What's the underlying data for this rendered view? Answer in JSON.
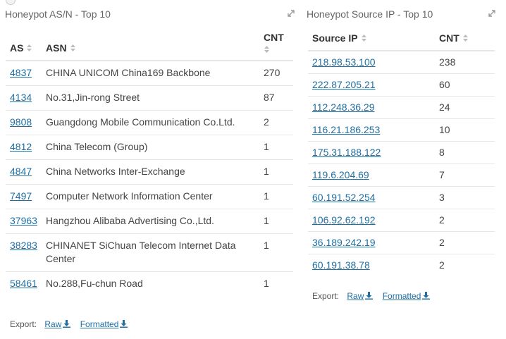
{
  "asn_panel": {
    "title": "Honeypot AS/N - Top 10",
    "headers": {
      "as": "AS",
      "asn": "ASN",
      "cnt": "CNT"
    },
    "rows": [
      {
        "as": "4837",
        "asn": "CHINA UNICOM China169 Backbone",
        "cnt": "270"
      },
      {
        "as": "4134",
        "asn": "No.31,Jin-rong Street",
        "cnt": "87"
      },
      {
        "as": "9808",
        "asn": "Guangdong Mobile Communication Co.Ltd.",
        "cnt": "2"
      },
      {
        "as": "4812",
        "asn": "China Telecom (Group)",
        "cnt": "1"
      },
      {
        "as": "4847",
        "asn": "China Networks Inter-Exchange",
        "cnt": "1"
      },
      {
        "as": "7497",
        "asn": "Computer Network Information Center",
        "cnt": "1"
      },
      {
        "as": "37963",
        "asn": "Hangzhou Alibaba Advertising Co.,Ltd.",
        "cnt": "1"
      },
      {
        "as": "38283",
        "asn": "CHINANET SiChuan Telecom Internet Data Center",
        "cnt": "1"
      },
      {
        "as": "58461",
        "asn": "No.288,Fu-chun Road",
        "cnt": "1"
      }
    ],
    "export": {
      "label": "Export:",
      "raw": "Raw",
      "formatted": "Formatted"
    }
  },
  "ip_panel": {
    "title": "Honeypot Source IP - Top 10",
    "headers": {
      "ip": "Source IP",
      "cnt": "CNT"
    },
    "rows": [
      {
        "ip": "218.98.53.100",
        "cnt": "238"
      },
      {
        "ip": "222.87.205.21",
        "cnt": "60"
      },
      {
        "ip": "112.248.36.29",
        "cnt": "24"
      },
      {
        "ip": "116.21.186.253",
        "cnt": "10"
      },
      {
        "ip": "175.31.188.122",
        "cnt": "8"
      },
      {
        "ip": "119.6.204.69",
        "cnt": "7"
      },
      {
        "ip": "60.191.52.254",
        "cnt": "3"
      },
      {
        "ip": "106.92.62.192",
        "cnt": "2"
      },
      {
        "ip": "36.189.242.19",
        "cnt": "2"
      },
      {
        "ip": "60.191.38.78",
        "cnt": "2"
      }
    ],
    "export": {
      "label": "Export:",
      "raw": "Raw",
      "formatted": "Formatted"
    }
  },
  "icons": {
    "expand": "expand-icon",
    "sort": "sort-icon",
    "download": "download-icon"
  },
  "colors": {
    "link": "#1f6fa3",
    "rule": "#e6e6e6",
    "title": "#666666"
  }
}
